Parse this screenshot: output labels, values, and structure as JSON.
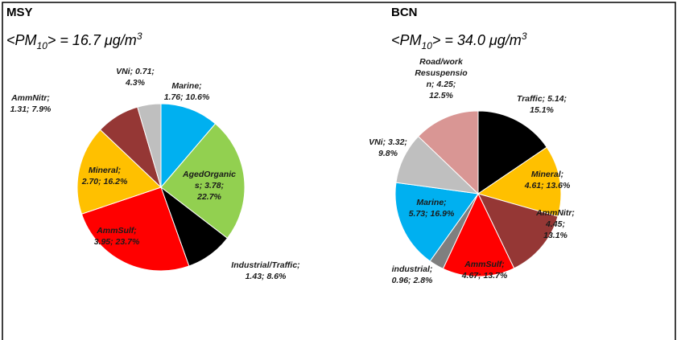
{
  "chart_data": [
    {
      "type": "pie",
      "title": "MSY",
      "subtitle": [
        "<PM",
        "10",
        "> = 16.7 μg/m",
        "3"
      ],
      "categories": [
        "Marine",
        "AgedOrganic",
        "Industrial/Traffic",
        "AmmSulf",
        "Mineral",
        "AmmNitr",
        "VNi"
      ],
      "values": [
        1.76,
        3.78,
        1.43,
        3.95,
        2.7,
        1.31,
        0.71
      ],
      "labels": [
        [
          "Marine;",
          "1.76; 10.6%"
        ],
        [
          "AgedOrganic",
          "s; 3.78;",
          "22.7%"
        ],
        [
          "Industrial/Traffic;",
          "1.43; 8.6%"
        ],
        [
          "AmmSulf;",
          "3.95; 23.7%"
        ],
        [
          "Mineral;",
          "2.70; 16.2%"
        ],
        [
          "AmmNitr;",
          "1.31; 7.9%"
        ],
        [
          "VNi; 0.71;",
          "4.3%"
        ]
      ],
      "colors": [
        "#00b0f0",
        "#92d050",
        "#000000",
        "#ff0000",
        "#ffc000",
        "#953735",
        "#bfbfbf"
      ]
    },
    {
      "type": "pie",
      "title": "BCN",
      "subtitle": [
        "<PM",
        "10",
        "> = 34.0 μg/m",
        "3"
      ],
      "categories": [
        "Traffic",
        "Mineral",
        "AmmNitr",
        "AmmSulf",
        "industrial",
        "Marine",
        "VNi",
        "Road/work Resuspension"
      ],
      "values": [
        5.14,
        4.61,
        4.45,
        4.67,
        0.96,
        5.73,
        3.32,
        4.25
      ],
      "labels": [
        [
          "Traffic; 5.14;",
          "15.1%"
        ],
        [
          "Mineral;",
          "4.61; 13.6%"
        ],
        [
          "AmmNitr;",
          "4.45;",
          "13.1%"
        ],
        [
          "AmmSulf;",
          "4.67; 13.7%"
        ],
        [
          "industrial;",
          "0.96; 2.8%"
        ],
        [
          "Marine;",
          "5.73; 16.9%"
        ],
        [
          "VNi; 3.32;",
          "9.8%"
        ],
        [
          "Road/work",
          "Resuspensio",
          "n; 4.25;",
          "12.5%"
        ]
      ],
      "colors": [
        "#000000",
        "#ffc000",
        "#953735",
        "#ff0000",
        "#7f7f7f",
        "#00b0f0",
        "#bfbfbf",
        "#d99694"
      ]
    }
  ]
}
